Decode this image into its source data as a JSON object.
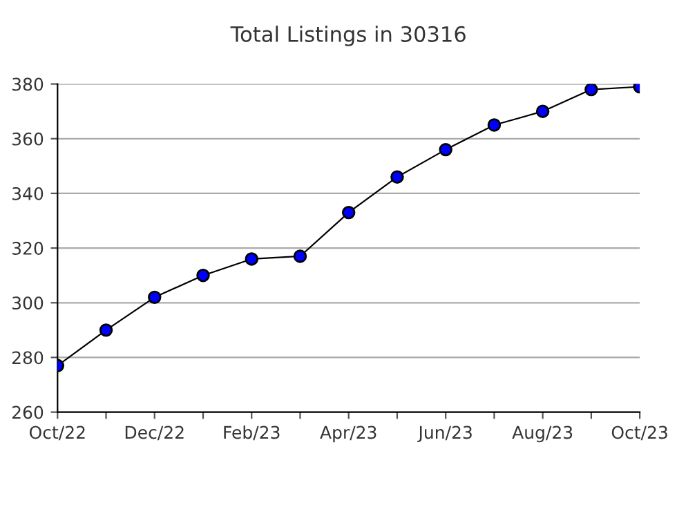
{
  "chart_data": {
    "type": "line",
    "title": "Total Listings in 30316",
    "categories": [
      "Oct/22",
      null,
      "Dec/22",
      null,
      "Feb/23",
      null,
      "Apr/23",
      null,
      "Jun/23",
      null,
      "Aug/23",
      null,
      "Oct/23"
    ],
    "series": [
      {
        "color": "#0000ff",
        "values": [
          277,
          290,
          302,
          310,
          316,
          317,
          333,
          346,
          356,
          365,
          370,
          378,
          379
        ]
      }
    ],
    "ylim": [
      260,
      380
    ],
    "yticks": [
      260,
      280,
      300,
      320,
      340,
      360,
      380
    ],
    "grid": "y",
    "marker": "circle",
    "line_style": "solid"
  }
}
